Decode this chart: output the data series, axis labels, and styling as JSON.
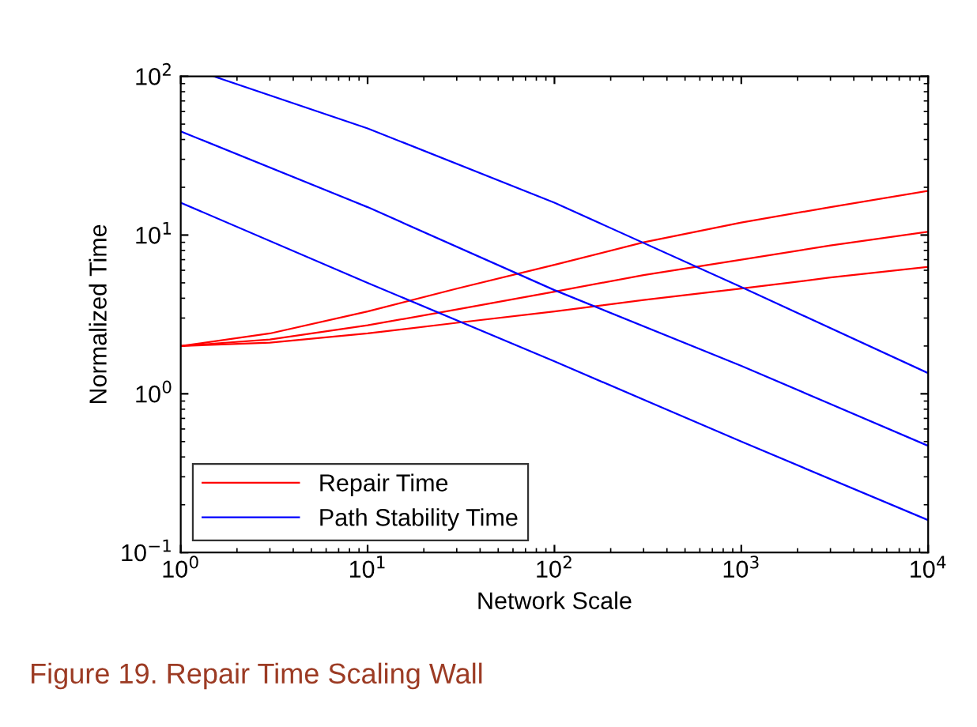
{
  "chart_data": {
    "type": "line",
    "xlabel": "Network Scale",
    "ylabel": "Normalized Time",
    "log": "xy",
    "grid": false,
    "legend": "bottom left",
    "marker": "none",
    "line_style": "solid",
    "xlim": [
      1,
      10000
    ],
    "ylim": [
      0.1,
      100
    ],
    "xticks": [
      {
        "value": 1,
        "label": "10$^{0}$"
      },
      {
        "value": 10,
        "label": "10$^{1}$"
      },
      {
        "value": 100,
        "label": "10$^{2}$"
      },
      {
        "value": 1000,
        "label": "10$^{3}$"
      },
      {
        "value": 10000,
        "label": "10$^{4}$"
      }
    ],
    "yticks": [
      {
        "value": 0.1,
        "label": "10$^{−1}$"
      },
      {
        "value": 1,
        "label": "10$^{0}$"
      },
      {
        "value": 10,
        "label": "10$^{1}$"
      },
      {
        "value": 100,
        "label": "10$^{2}$"
      }
    ],
    "series": [
      {
        "name": "Repair Time",
        "color": "#ff0000",
        "x": [
          1,
          3,
          10,
          30,
          100,
          300,
          1000,
          3000,
          10000
        ],
        "values": [
          2,
          2.2,
          2.7,
          3.4,
          4.4,
          5.6,
          7,
          8.6,
          10.5
        ]
      },
      {
        "color": "#ff0000",
        "x": [
          1,
          3,
          10,
          30,
          100,
          300,
          1000,
          3000,
          10000
        ],
        "values": [
          2,
          2.4,
          3.3,
          4.6,
          6.5,
          9,
          12,
          15,
          19
        ]
      },
      {
        "color": "#ff0000",
        "x": [
          1,
          3,
          10,
          30,
          100,
          300,
          1000,
          3000,
          10000
        ],
        "values": [
          2,
          2.1,
          2.4,
          2.8,
          3.3,
          3.9,
          4.6,
          5.4,
          6.3
        ]
      },
      {
        "name": "Path Stability Time",
        "color": "#0000ff",
        "x": [
          1,
          10,
          100,
          1000,
          10000
        ],
        "values": [
          45,
          15,
          4.5,
          1.5,
          0.47
        ]
      },
      {
        "color": "#0000ff",
        "x": [
          1.5,
          10,
          100,
          1000,
          10000
        ],
        "values": [
          100,
          47,
          16,
          4.7,
          1.35
        ]
      },
      {
        "color": "#0000ff",
        "x": [
          1,
          10,
          100,
          1000,
          10000
        ],
        "values": [
          16,
          5,
          1.6,
          0.5,
          0.16
        ]
      }
    ],
    "annotations": [
      "Figure 19. Repair Time Scaling Wall"
    ]
  }
}
